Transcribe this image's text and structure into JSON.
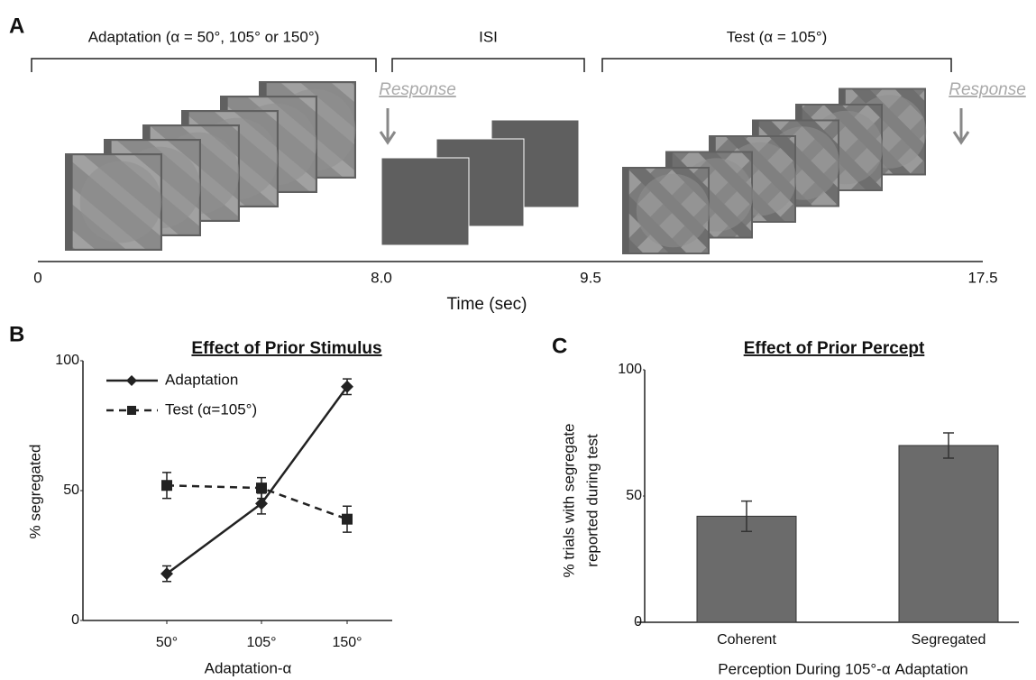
{
  "chart_data": [
    {
      "type": "timeline",
      "panel": "A",
      "phases": [
        "Adaptation (α = 50°, 105° or 150°)",
        "ISI",
        "Test (α = 105°)"
      ],
      "responses": [
        "Response",
        "Response"
      ],
      "xticks": [
        0,
        {
          "value": 8,
          "label": "8.0"
        },
        9.5,
        17.5
      ],
      "xlabel": "Time (sec)"
    },
    {
      "type": "line",
      "panel": "B",
      "title": "Effect of Prior Stimulus",
      "categories": [
        "50°",
        "105°",
        "150°"
      ],
      "series": [
        {
          "name": "Adaptation",
          "color": "#222222",
          "style": "solid",
          "marker": "diamond",
          "values": [
            18,
            45,
            90
          ],
          "errors": [
            3,
            4,
            3
          ]
        },
        {
          "name": "Test (α=105°)",
          "color": "#222222",
          "style": "dashed",
          "marker": "square",
          "values": [
            52,
            51,
            39
          ],
          "errors": [
            5,
            4,
            5
          ]
        }
      ],
      "xlabel": "Adaptation-α",
      "ylabel": "% segregated",
      "ylim": [
        0,
        100
      ],
      "yticks": [
        0,
        50,
        100
      ]
    },
    {
      "type": "bar",
      "panel": "C",
      "title": "Effect of Prior Percept",
      "categories": [
        "Coherent",
        "Segregated"
      ],
      "values": [
        42,
        70
      ],
      "errors": [
        6,
        5
      ],
      "color": "#6b6b6b",
      "xlabel": "Perception During 105°-α Adaptation",
      "ylabel": [
        "% trials with segregate",
        "reported during test"
      ],
      "ylim": [
        0,
        100
      ],
      "yticks": [
        0,
        50,
        100
      ]
    }
  ]
}
